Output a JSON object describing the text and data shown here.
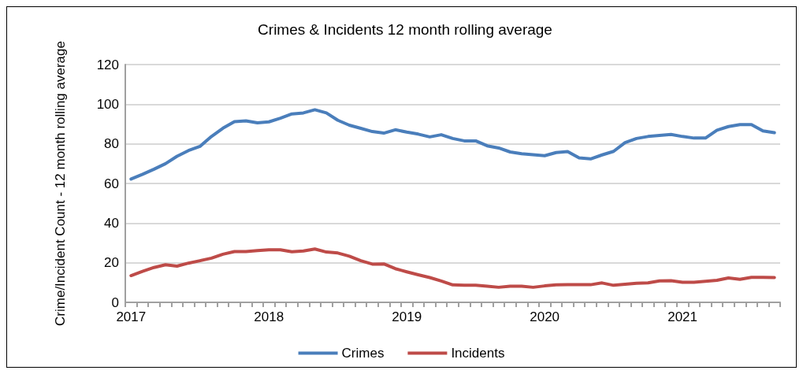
{
  "chart_data": {
    "type": "line",
    "title": "Crimes & Incidents 12 month rolling average",
    "ylabel": "Crime/Incident Count - 12 month rolling average",
    "categories": [
      "2017",
      null,
      null,
      null,
      null,
      null,
      null,
      null,
      null,
      null,
      null,
      null,
      "2018",
      null,
      null,
      null,
      null,
      null,
      null,
      null,
      null,
      null,
      null,
      null,
      "2019",
      null,
      null,
      null,
      null,
      null,
      null,
      null,
      null,
      null,
      null,
      null,
      "2020",
      null,
      null,
      null,
      null,
      null,
      null,
      null,
      null,
      null,
      null,
      null,
      "2021",
      null,
      null,
      null,
      null,
      null,
      null,
      null,
      null
    ],
    "series": [
      {
        "name": "Crimes",
        "color": "#4a7ebb",
        "values": [
          62.2,
          64.6,
          67.2,
          70,
          73.7,
          76.6,
          78.7,
          83.7,
          87.9,
          91.2,
          91.6,
          90.6,
          91.1,
          92.9,
          95.1,
          95.6,
          97.2,
          95.6,
          91.9,
          89.4,
          87.8,
          86.2,
          85.4,
          87.1,
          85.9,
          84.9,
          83.5,
          84.6,
          82.7,
          81.5,
          81.5,
          79,
          77.9,
          75.9,
          75,
          74.5,
          74,
          75.6,
          76.1,
          72.9,
          72.4,
          74.4,
          76.2,
          80.6,
          82.7,
          83.7,
          84.2,
          84.7,
          83.7,
          82.9,
          82.9,
          86.9,
          88.7,
          89.7,
          89.7,
          86.5,
          85.6
        ]
      },
      {
        "name": "Incidents",
        "color": "#be4b48",
        "values": [
          13.5,
          15.6,
          17.6,
          19,
          18.3,
          19.8,
          21,
          22.3,
          24.3,
          25.6,
          25.6,
          26.1,
          26.5,
          26.5,
          25.5,
          25.9,
          26.9,
          25.4,
          24.9,
          23.3,
          21,
          19.3,
          19.4,
          17,
          15.4,
          13.9,
          12.5,
          10.8,
          8.8,
          8.6,
          8.6,
          8.1,
          7.6,
          8.1,
          8.1,
          7.6,
          8.3,
          8.8,
          8.9,
          8.9,
          8.9,
          9.8,
          8.6,
          9.1,
          9.6,
          9.8,
          10.8,
          10.9,
          10.1,
          10.1,
          10.6,
          11.1,
          12.3,
          11.6,
          12.6,
          12.6,
          12.5
        ]
      }
    ],
    "ylim": [
      0,
      120
    ],
    "yticks": [
      0,
      20,
      40,
      60,
      80,
      100,
      120
    ],
    "grid": "y",
    "legend": "bottom",
    "marker": "none",
    "line_style": "solid"
  }
}
